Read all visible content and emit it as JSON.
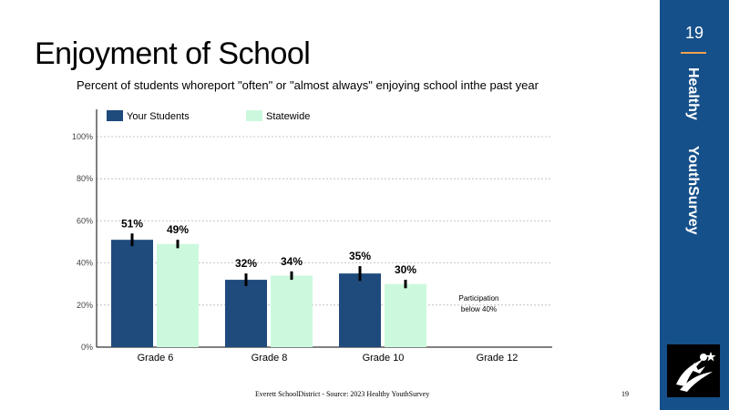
{
  "header": {
    "title": "Enjoyment  of School",
    "subtitle": "Percent of students whoreport  \"often\" or \"almost always\" enjoying  school inthe past year"
  },
  "footer": {
    "source": "Everett   SchoolDistrict   -   Source:    2023  Healthy   YouthSurvey",
    "page": "19"
  },
  "side_panel": {
    "page_number": "19",
    "word1": "Healthy",
    "word2": "YouthSurvey",
    "color": "#15508a",
    "accent": "#f0a050"
  },
  "chart_data": {
    "type": "bar",
    "categories": [
      "Grade 6",
      "Grade 8",
      "Grade 10",
      "Grade 12"
    ],
    "series": [
      {
        "name": "Your Students",
        "color": "#1f4a7c",
        "values": [
          51,
          32,
          35,
          null
        ],
        "labels": [
          "51%",
          "32%",
          "35%",
          ""
        ],
        "error": [
          3,
          3,
          3.5,
          null
        ]
      },
      {
        "name": "Statewide",
        "color": "#ccf9dd",
        "values": [
          49,
          34,
          30,
          null
        ],
        "labels": [
          "49%",
          "34%",
          "30%",
          ""
        ],
        "error": [
          2,
          2,
          2,
          null
        ]
      }
    ],
    "ylim": [
      0,
      100
    ],
    "yticks": [
      "0%",
      "20%",
      "40%",
      "60%",
      "80%",
      "100%"
    ],
    "grid": true,
    "legend": "top-left",
    "annotation": {
      "category": "Grade 12",
      "lines": [
        "Participation",
        "below 40%"
      ]
    }
  }
}
